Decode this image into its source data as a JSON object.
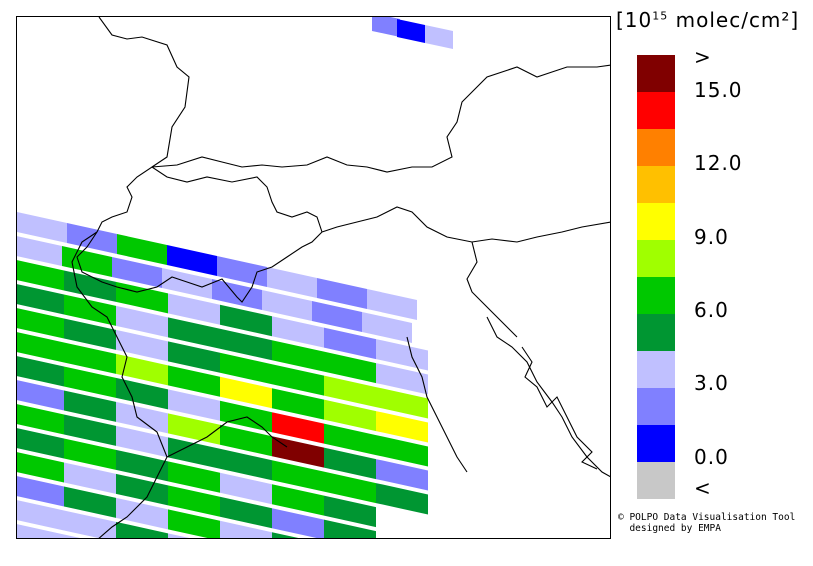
{
  "legend": {
    "unit_base": "[10",
    "unit_exp": "15",
    "unit_rest": " molec/cm²]",
    "colors": [
      "#800000",
      "#ff0000",
      "#ff8000",
      "#ffc000",
      "#ffff00",
      "#a0ff00",
      "#00c800",
      "#009632",
      "#c0c0ff",
      "#8080ff",
      "#0000ff",
      "#c8c8c8"
    ],
    "labels": [
      ">",
      "15.0",
      "12.0",
      "9.0",
      "6.0",
      "3.0",
      "0.0",
      "<"
    ]
  },
  "credit": {
    "line1": "© POLPO Data Visualisation Tool",
    "line2": "  designed by EMPA"
  }
}
